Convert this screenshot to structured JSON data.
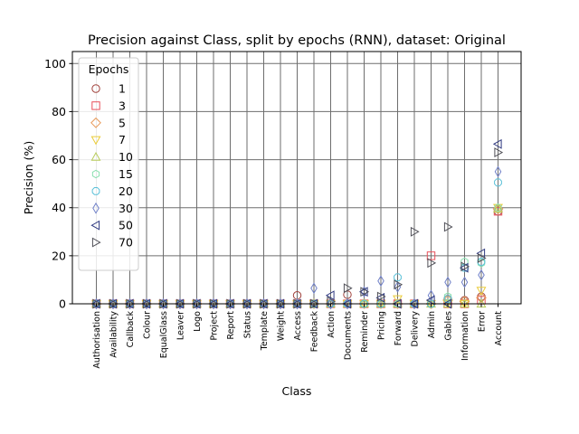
{
  "chart_data": {
    "type": "scatter",
    "title": "Precision against Class, split by epochs (RNN), dataset: Original",
    "xlabel": "Class",
    "ylabel": "Precision (%)",
    "ylim": [
      0,
      105
    ],
    "yticks": [
      0,
      20,
      40,
      60,
      80,
      100
    ],
    "grid": true,
    "legend": {
      "title": "Epochs",
      "position": "top-left"
    },
    "categories": [
      "Authorisation",
      "Availability",
      "Callback",
      "Colour",
      "EqualGlass",
      "Leaver",
      "Logo",
      "Project",
      "Report",
      "Status",
      "Template",
      "Weight",
      "Access",
      "Feedback",
      "Action",
      "Documents",
      "Reminder",
      "Pricing",
      "Forward",
      "Delivery",
      "Admin",
      "Gables",
      "Information",
      "Error",
      "Account"
    ],
    "series": [
      {
        "name": "1",
        "marker": "circle",
        "color": "#a0403a",
        "values": [
          0,
          0,
          0,
          0,
          0,
          0,
          0,
          0,
          0,
          0,
          0,
          0,
          3.5,
          0,
          0,
          3.8,
          0,
          0,
          0,
          0,
          0,
          2,
          1.5,
          3,
          38.5
        ]
      },
      {
        "name": "3",
        "marker": "square",
        "color": "#e8505a",
        "values": [
          0,
          0,
          0,
          0,
          0,
          0,
          0,
          0,
          0,
          0,
          0,
          0,
          0,
          0,
          0,
          0,
          0,
          0,
          0,
          0,
          20,
          0,
          0,
          1.5,
          38.5
        ]
      },
      {
        "name": "5",
        "marker": "diamond",
        "color": "#e89a5a",
        "values": [
          0,
          0,
          0,
          0,
          0,
          0,
          0,
          0,
          0,
          0,
          0,
          0,
          0,
          0,
          0,
          0,
          0,
          0,
          0,
          0,
          0,
          1.5,
          1,
          2.5,
          39.5
        ]
      },
      {
        "name": "7",
        "marker": "tri-down",
        "color": "#eacc3a",
        "values": [
          0,
          0,
          0,
          0,
          0,
          0,
          0,
          0,
          0,
          0,
          0,
          0,
          0,
          0,
          0,
          0,
          0,
          0,
          2,
          0,
          0,
          0,
          0,
          5.5,
          40
        ]
      },
      {
        "name": "10",
        "marker": "tri-up",
        "color": "#b8cc5a",
        "values": [
          0,
          0,
          0,
          0,
          0,
          0,
          0,
          0,
          0,
          0,
          0,
          0,
          0,
          0,
          0,
          0,
          0,
          0,
          0,
          0,
          0,
          0,
          0,
          0,
          39.5
        ]
      },
      {
        "name": "15",
        "marker": "hexagon",
        "color": "#8ae0b0",
        "values": [
          0,
          0,
          0,
          0,
          0,
          0,
          0,
          0,
          0,
          0,
          0,
          0,
          0,
          0,
          0,
          0,
          0,
          0,
          0,
          0,
          0,
          3,
          17.5,
          17,
          40
        ]
      },
      {
        "name": "20",
        "marker": "octagon",
        "color": "#5ac0d8",
        "values": [
          0,
          0,
          0,
          0,
          0,
          0,
          0,
          0,
          0,
          0,
          0,
          0,
          0,
          0,
          0,
          0,
          0,
          0,
          11,
          0,
          0,
          2,
          15,
          17.5,
          50.5
        ]
      },
      {
        "name": "30",
        "marker": "thin-diamond",
        "color": "#7080c8",
        "values": [
          0,
          0,
          0,
          0,
          0,
          0,
          0,
          0,
          0,
          0,
          0,
          0,
          0,
          6.5,
          0,
          0,
          5,
          9.5,
          7,
          0,
          3.5,
          9,
          9,
          12,
          55
        ]
      },
      {
        "name": "50",
        "marker": "tri-left",
        "color": "#303a80",
        "values": [
          0,
          0,
          0,
          0,
          0,
          0,
          0,
          0,
          0,
          0,
          0,
          0,
          0,
          0,
          3.5,
          0,
          5,
          2.5,
          0,
          0,
          1.5,
          0,
          15,
          21,
          66.5
        ]
      },
      {
        "name": "70",
        "marker": "tri-right",
        "color": "#505058",
        "values": [
          0,
          0,
          0,
          0,
          0,
          0,
          0,
          0,
          0,
          0,
          0,
          0,
          0,
          0,
          1,
          6.5,
          5,
          3,
          8,
          30,
          17,
          32,
          15.5,
          19,
          63
        ]
      }
    ]
  }
}
